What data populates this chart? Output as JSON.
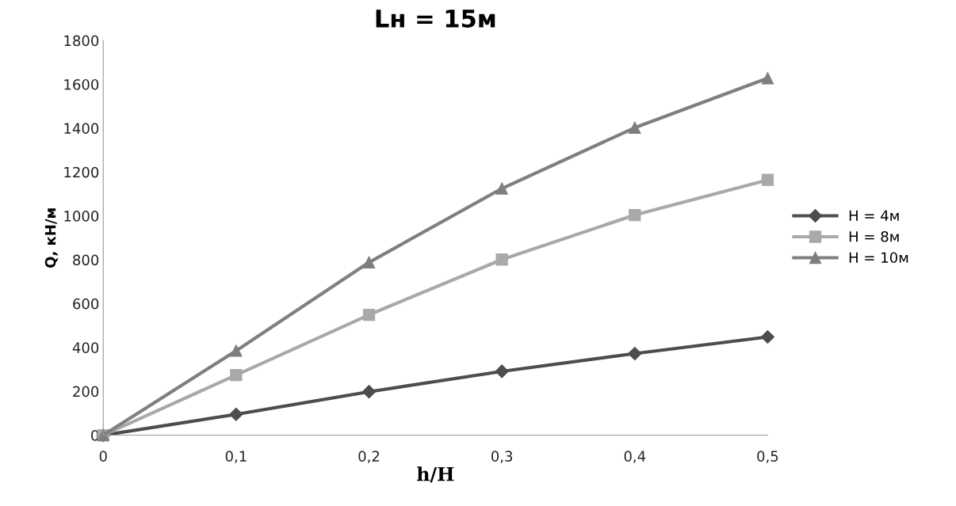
{
  "chart_data": {
    "type": "line",
    "title": "Lн = 15м",
    "xlabel": "h/H",
    "ylabel": "Q, кН/м",
    "x": [
      0,
      0.1,
      0.2,
      0.3,
      0.4,
      0.5
    ],
    "series": [
      {
        "name": "H = 4м",
        "color": "#4d4d4d",
        "marker": "diamond",
        "values": [
          0,
          95,
          198,
          291,
          372,
          448
        ]
      },
      {
        "name": "H = 8м",
        "color": "#a9a9a9",
        "marker": "square",
        "values": [
          0,
          274,
          549,
          801,
          1004,
          1164
        ]
      },
      {
        "name": "H = 10м",
        "color": "#7f7f7f",
        "marker": "triangle",
        "values": [
          0,
          385,
          788,
          1125,
          1402,
          1628
        ]
      }
    ],
    "xlim": [
      0,
      0.5
    ],
    "xticks": [
      {
        "value": 0,
        "label": "0"
      },
      {
        "value": 0.1,
        "label": "0,1"
      },
      {
        "value": 0.2,
        "label": "0,2"
      },
      {
        "value": 0.3,
        "label": "0,3"
      },
      {
        "value": 0.4,
        "label": "0,4"
      },
      {
        "value": 0.5,
        "label": "0,5"
      }
    ],
    "ylim": [
      0,
      1800
    ],
    "yticks": [
      0,
      200,
      400,
      600,
      800,
      1000,
      1200,
      1400,
      1600,
      1800
    ],
    "grid": false,
    "legend": "right",
    "line_style": "solid"
  }
}
